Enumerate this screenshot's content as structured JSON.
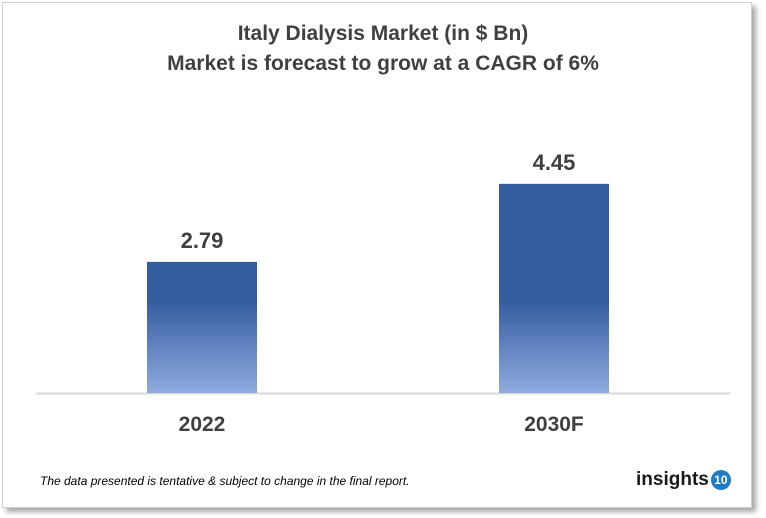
{
  "chart_data": {
    "type": "bar",
    "title": "Italy Dialysis Market (in $ Bn)",
    "subtitle": "Market is forecast to grow at a CAGR of 6%",
    "categories": [
      "2022",
      "2030F"
    ],
    "values": [
      2.79,
      4.45
    ],
    "data_labels": [
      "2.79",
      "4.45"
    ],
    "xlabel": "",
    "ylabel": "",
    "ylim": [
      0,
      4.8
    ],
    "grid": false,
    "legend": "none",
    "colors": {
      "bar_top": "#345CA0",
      "bar_bottom": "#8EAADF",
      "axis": "#d9d9d9",
      "text": "#404040"
    }
  },
  "footnote": "The data presented is tentative & subject to change in the final report.",
  "logo": {
    "text": "insights",
    "badge": "10",
    "color": "#1f7cc4"
  }
}
